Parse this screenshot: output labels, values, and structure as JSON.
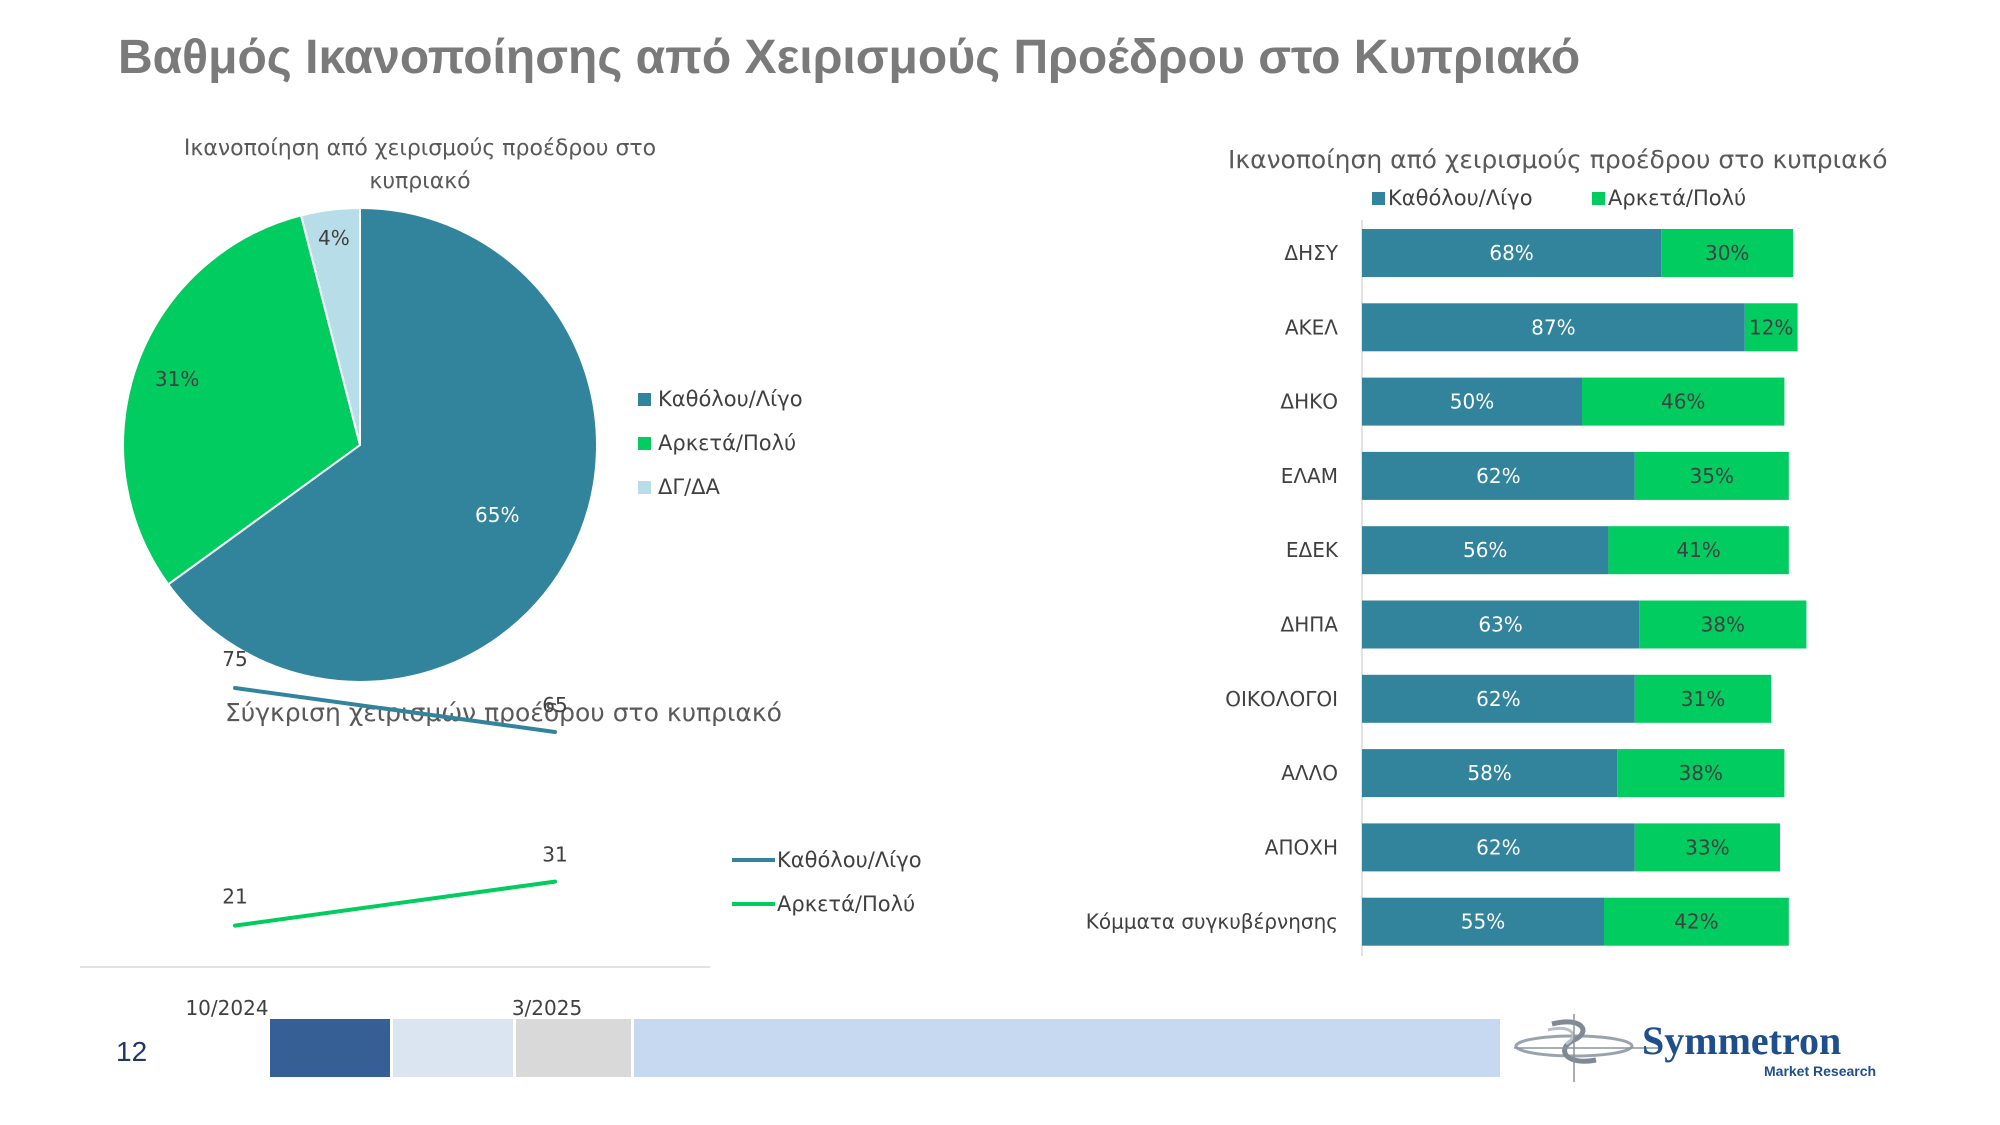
{
  "page": {
    "title": "Βαθμός Ικανοποίησης από Χειρισμούς Προέδρου στο Κυπριακό",
    "page_number": "12"
  },
  "colors": {
    "katholou": "#31849b",
    "arketa": "#00cc5f",
    "dg": "#b7dde8",
    "footer": [
      "#365f96",
      "#dbe5f1",
      "#d9d9d9",
      "#c6d9f0"
    ]
  },
  "logo": {
    "name": "Symmetron",
    "tagline": "Market Research",
    "icon": "symmetron-swirl-icon"
  },
  "chart_data": [
    {
      "type": "pie",
      "title": "Ικανοποίηση από χειρισμούς προέδρου στο κυπριακό",
      "categories": [
        "Καθόλου/Λίγο",
        "Αρκετά/Πολύ",
        "ΔΓ/ΔΑ"
      ],
      "values": [
        65,
        31,
        4
      ],
      "value_labels": [
        "65%",
        "31%",
        "4%"
      ],
      "legend": "right"
    },
    {
      "type": "line",
      "title": "Σύγκριση χειρισμών προέδρου στο κυπριακό",
      "x": [
        "10/2024",
        "3/2025"
      ],
      "series": [
        {
          "name": "Καθόλου/Λίγο",
          "values": [
            75,
            65
          ]
        },
        {
          "name": "Αρκετά/Πολύ",
          "values": [
            21,
            31
          ]
        }
      ],
      "grid": false,
      "legend": "right"
    },
    {
      "type": "bar",
      "orientation": "horizontal",
      "stacked": true,
      "title": "Ικανοποίηση από χειρισμούς προέδρου στο κυπριακό",
      "categories": [
        "ΔΗΣΥ",
        "ΑΚΕΛ",
        "ΔΗΚΟ",
        "ΕΛΑΜ",
        "ΕΔΕΚ",
        "ΔΗΠΑ",
        "ΟΙΚΟΛΟΓΟΙ",
        "ΑΛΛΟ",
        "ΑΠΟΧΗ",
        "Κόμματα συγκυβέρνησης"
      ],
      "series": [
        {
          "name": "Καθόλου/Λίγο",
          "values": [
            68,
            87,
            50,
            62,
            56,
            63,
            62,
            58,
            62,
            55
          ]
        },
        {
          "name": "Αρκετά/Πολύ",
          "values": [
            30,
            12,
            46,
            35,
            41,
            38,
            31,
            38,
            33,
            42
          ]
        }
      ],
      "legend": "top"
    }
  ]
}
